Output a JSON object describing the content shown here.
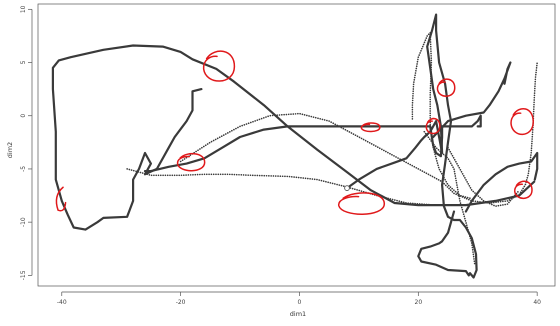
{
  "chart_data": {
    "type": "line",
    "title": "",
    "xlabel": "dim1",
    "ylabel": "dim2",
    "xlim": [
      -44,
      43
    ],
    "ylim": [
      -16,
      10.5
    ],
    "xticks": [
      -40,
      -20,
      0,
      20,
      40
    ],
    "xtick_labels": [
      "-40",
      "-20",
      "0",
      "20",
      "40"
    ],
    "yticks": [
      -15,
      -10,
      -5,
      0,
      5,
      10
    ],
    "ytick_labels": [
      "-15",
      "-10",
      "-5",
      "0",
      "5",
      "10"
    ],
    "grid": false,
    "colors": {
      "trajectory": "#3a3a3a",
      "annotation": "#e0191b",
      "axis": "#555555"
    },
    "series": [
      {
        "style": "solid",
        "points": [
          [
            -16.5,
            2.5
          ],
          [
            -18,
            2.3
          ],
          [
            -18,
            0.5
          ],
          [
            -19,
            -0.5
          ],
          [
            -21,
            -2
          ],
          [
            -22,
            -3
          ],
          [
            -24,
            -5
          ],
          [
            -26,
            -5.5
          ],
          [
            -25,
            -4.5
          ],
          [
            -26,
            -3.5
          ],
          [
            -27,
            -5
          ],
          [
            -28,
            -6
          ],
          [
            -28,
            -8
          ],
          [
            -29,
            -9.5
          ],
          [
            -33,
            -9.6
          ],
          [
            -34,
            -10
          ],
          [
            -36,
            -10.7
          ],
          [
            -38,
            -10.5
          ],
          [
            -39,
            -9.3
          ],
          [
            -40,
            -8
          ],
          [
            -41,
            -6
          ],
          [
            -41,
            -4
          ],
          [
            -41,
            -1.5
          ],
          [
            -41.5,
            2.5
          ],
          [
            -41.5,
            4.5
          ],
          [
            -40.5,
            5.2
          ],
          [
            -38.5,
            5.5
          ],
          [
            -33,
            6.2
          ],
          [
            -28,
            6.6
          ],
          [
            -23,
            6.5
          ],
          [
            -20,
            6
          ],
          [
            -18,
            5.3
          ],
          [
            -14,
            4.4
          ],
          [
            -11,
            3.2
          ],
          [
            -6,
            1
          ],
          [
            -2,
            -1
          ],
          [
            3,
            -3.2
          ],
          [
            8,
            -5.3
          ],
          [
            12,
            -7
          ],
          [
            16,
            -8.2
          ],
          [
            20,
            -8.4
          ],
          [
            23,
            -8.4
          ],
          [
            28,
            -8.4
          ],
          [
            33,
            -8
          ],
          [
            37,
            -7.5
          ],
          [
            39.5,
            -6.2
          ]
        ]
      },
      {
        "style": "solid",
        "points": [
          [
            8,
            -6.8
          ],
          [
            10,
            -6
          ],
          [
            13,
            -5
          ],
          [
            16,
            -4.4
          ],
          [
            18,
            -4
          ],
          [
            19.5,
            -3
          ],
          [
            20.5,
            -2.3
          ],
          [
            21,
            -2
          ],
          [
            22,
            -1.5
          ],
          [
            23,
            -0.5
          ],
          [
            23.5,
            -2
          ],
          [
            24,
            -3.5
          ],
          [
            23.8,
            -1
          ],
          [
            23.2,
            1
          ],
          [
            22.5,
            2.5
          ],
          [
            22,
            4.5
          ],
          [
            21.5,
            6.5
          ],
          [
            22.3,
            8
          ],
          [
            23,
            9.5
          ],
          [
            23,
            8
          ],
          [
            23.5,
            5
          ],
          [
            24.5,
            3
          ],
          [
            25,
            1
          ],
          [
            25.5,
            -0.5
          ],
          [
            25,
            -2.5
          ],
          [
            24.5,
            -4.5
          ],
          [
            24,
            -6.5
          ],
          [
            24.3,
            -8.5
          ],
          [
            25,
            -9.5
          ],
          [
            26,
            -9.8
          ],
          [
            27,
            -9.8
          ],
          [
            28,
            -10.5
          ],
          [
            29,
            -11.5
          ],
          [
            29.7,
            -13
          ],
          [
            29.8,
            -14.5
          ],
          [
            29.3,
            -15.2
          ],
          [
            28.7,
            -14.8
          ],
          [
            28.5,
            -15
          ],
          [
            28,
            -14.6
          ],
          [
            25,
            -14.5
          ],
          [
            23,
            -14
          ],
          [
            20.5,
            -13.7
          ],
          [
            20,
            -13.2
          ],
          [
            20.5,
            -12.5
          ],
          [
            22,
            -12.3
          ],
          [
            23.5,
            -12
          ],
          [
            24,
            -11.8
          ],
          [
            25,
            -11
          ],
          [
            25.5,
            -10
          ],
          [
            26,
            -9
          ]
        ]
      },
      {
        "style": "solid",
        "points": [
          [
            -26,
            -5.2
          ],
          [
            -25,
            -5.2
          ],
          [
            -22,
            -4.8
          ],
          [
            -19,
            -4.5
          ],
          [
            -16,
            -4
          ],
          [
            -13,
            -3
          ],
          [
            -10,
            -2
          ],
          [
            -6,
            -1.3
          ],
          [
            -2,
            -1
          ],
          [
            3,
            -1
          ],
          [
            8,
            -1
          ],
          [
            13,
            -1
          ],
          [
            17,
            -1
          ],
          [
            20,
            -1
          ],
          [
            22,
            -1
          ],
          [
            22.5,
            -2.8
          ],
          [
            23,
            -3.5
          ],
          [
            23.8,
            -3.8
          ],
          [
            24,
            -2
          ],
          [
            24,
            -1
          ],
          [
            27,
            -1
          ],
          [
            29,
            -1
          ],
          [
            30,
            -0.5
          ],
          [
            30.5,
            0
          ],
          [
            30.5,
            -1
          ],
          [
            30,
            -1
          ]
        ]
      },
      {
        "style": "solid",
        "points": [
          [
            22.5,
            -2
          ],
          [
            25,
            -0.5
          ],
          [
            28,
            0
          ],
          [
            31,
            0.3
          ],
          [
            32,
            1
          ],
          [
            33.5,
            2.3
          ],
          [
            34.5,
            3.5
          ],
          [
            35.5,
            5
          ],
          [
            35,
            4.4
          ],
          [
            34.5,
            3
          ]
        ]
      },
      {
        "style": "solid",
        "points": [
          [
            28,
            -9
          ],
          [
            29,
            -8
          ],
          [
            31,
            -6.5
          ],
          [
            33,
            -5.5
          ],
          [
            35,
            -4.8
          ],
          [
            37,
            -4.5
          ],
          [
            39,
            -4.3
          ],
          [
            40,
            -3.5
          ],
          [
            40,
            -5
          ],
          [
            39.6,
            -6
          ]
        ]
      },
      {
        "style": "dotted",
        "points": [
          [
            -20,
            -4.3
          ],
          [
            -15,
            -2.5
          ],
          [
            -10,
            -1
          ],
          [
            -5,
            0
          ],
          [
            0,
            0.2
          ],
          [
            5,
            -0.5
          ],
          [
            10,
            -2
          ],
          [
            15,
            -3.5
          ],
          [
            20,
            -5
          ],
          [
            24,
            -6.2
          ],
          [
            26,
            -7.3
          ],
          [
            29,
            -8
          ],
          [
            32,
            -8.2
          ],
          [
            35,
            -8
          ],
          [
            37,
            -7.4
          ],
          [
            38,
            -6.5
          ],
          [
            38.5,
            -5.5
          ],
          [
            39,
            -3.5
          ],
          [
            39.3,
            -1
          ],
          [
            39.5,
            1.5
          ],
          [
            39.7,
            3.5
          ],
          [
            40,
            5
          ]
        ]
      },
      {
        "style": "dotted",
        "points": [
          [
            -29,
            -5
          ],
          [
            -25,
            -5.6
          ],
          [
            -20,
            -5.6
          ],
          [
            -16,
            -5.5
          ],
          [
            -12,
            -5.5
          ],
          [
            -8,
            -5.6
          ],
          [
            -2,
            -5.7
          ],
          [
            3,
            -6
          ],
          [
            8,
            -6.7
          ],
          [
            13,
            -7.5
          ],
          [
            18,
            -8.2
          ],
          [
            23,
            -8.4
          ],
          [
            28,
            -8.4
          ]
        ]
      },
      {
        "style": "dotted",
        "points": [
          [
            19,
            -0.3
          ],
          [
            19,
            1
          ],
          [
            19.2,
            3
          ],
          [
            20,
            5.5
          ],
          [
            21.5,
            7.5
          ],
          [
            22,
            7.8
          ],
          [
            22.2,
            5
          ],
          [
            22,
            2
          ],
          [
            22,
            -1
          ],
          [
            22.5,
            -3
          ],
          [
            23.5,
            -5
          ],
          [
            25,
            -6.5
          ],
          [
            27,
            -7.5
          ],
          [
            29,
            -7.8
          ]
        ]
      },
      {
        "style": "dotted",
        "points": [
          [
            21,
            -1.5
          ],
          [
            23,
            -3
          ],
          [
            25,
            -4
          ],
          [
            26,
            -5
          ],
          [
            26.5,
            -6.5
          ],
          [
            27,
            -8
          ],
          [
            28,
            -10
          ],
          [
            29,
            -12
          ],
          [
            29.5,
            -14
          ]
        ]
      },
      {
        "style": "dotted",
        "points": [
          [
            25,
            -3
          ],
          [
            27,
            -5
          ],
          [
            29,
            -7
          ],
          [
            31,
            -8
          ],
          [
            33,
            -8.5
          ],
          [
            35,
            -8.3
          ],
          [
            37,
            -7
          ]
        ]
      }
    ],
    "start_marker": [
      8,
      -6.8
    ],
    "annotations": [
      {
        "type": "hand-drawn-circle",
        "shape": "hook",
        "center": [
          -40.2,
          -8
        ],
        "rx": 0.7,
        "ry": 0.8
      },
      {
        "type": "hand-drawn-circle",
        "shape": "loop",
        "center": [
          -13.5,
          4.6
        ],
        "rx": 2.5,
        "ry": 1.4
      },
      {
        "type": "hand-drawn-circle",
        "shape": "loop",
        "center": [
          -18.2,
          -4.4
        ],
        "rx": 2.2,
        "ry": 0.8
      },
      {
        "type": "hand-drawn-circle",
        "shape": "loop",
        "center": [
          12,
          -1.1
        ],
        "rx": 1.5,
        "ry": 0.4
      },
      {
        "type": "hand-drawn-circle",
        "shape": "loop",
        "center": [
          10.5,
          -8.3
        ],
        "rx": 3.7,
        "ry": 1.0
      },
      {
        "type": "hand-drawn-circle",
        "shape": "loop",
        "center": [
          22.5,
          -1
        ],
        "rx": 1.1,
        "ry": 0.7
      },
      {
        "type": "hand-drawn-circle",
        "shape": "loop",
        "center": [
          24.7,
          2.6
        ],
        "rx": 1.4,
        "ry": 0.8
      },
      {
        "type": "hand-drawn-circle",
        "shape": "loop",
        "center": [
          37.5,
          -0.6
        ],
        "rx": 1.8,
        "ry": 1.2
      },
      {
        "type": "hand-drawn-circle",
        "shape": "loop",
        "center": [
          37.7,
          -7
        ],
        "rx": 1.4,
        "ry": 0.8
      }
    ]
  }
}
